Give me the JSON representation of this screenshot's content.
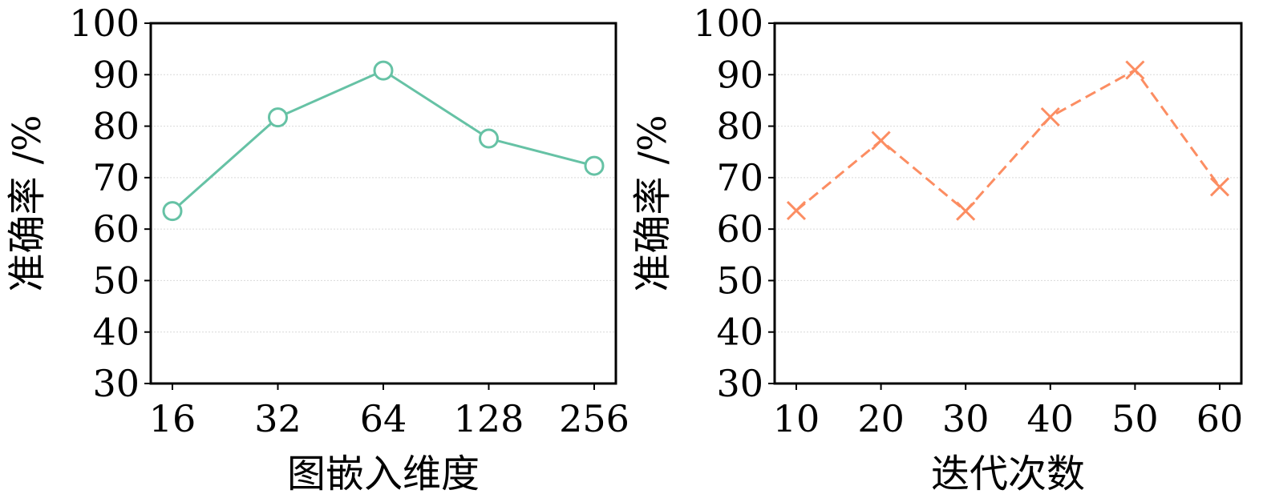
{
  "chart_data": [
    {
      "type": "line",
      "categories": [
        "16",
        "32",
        "64",
        "128",
        "256"
      ],
      "series": [
        {
          "values": [
            63.5,
            81.7,
            90.8,
            77.6,
            72.3
          ],
          "color": "#66c2a5",
          "marker": "circle",
          "line_style": "solid"
        }
      ],
      "xlabel": "图嵌入维度",
      "ylabel": "准确率 /%",
      "ylim": [
        30,
        100
      ],
      "yticks": [
        "30",
        "40",
        "50",
        "60",
        "70",
        "80",
        "90",
        "100"
      ],
      "grid": "horizontal"
    },
    {
      "type": "line",
      "categories": [
        "10",
        "20",
        "30",
        "40",
        "50",
        "60"
      ],
      "series": [
        {
          "values": [
            63.6,
            77.2,
            63.5,
            81.8,
            90.9,
            68.2
          ],
          "color": "#fc8d62",
          "marker": "x",
          "line_style": "dashed"
        }
      ],
      "xlabel": "迭代次数",
      "ylabel": "准确率 /%",
      "ylim": [
        30,
        100
      ],
      "yticks": [
        "30",
        "40",
        "50",
        "60",
        "70",
        "80",
        "90",
        "100"
      ],
      "grid": "horizontal"
    }
  ]
}
